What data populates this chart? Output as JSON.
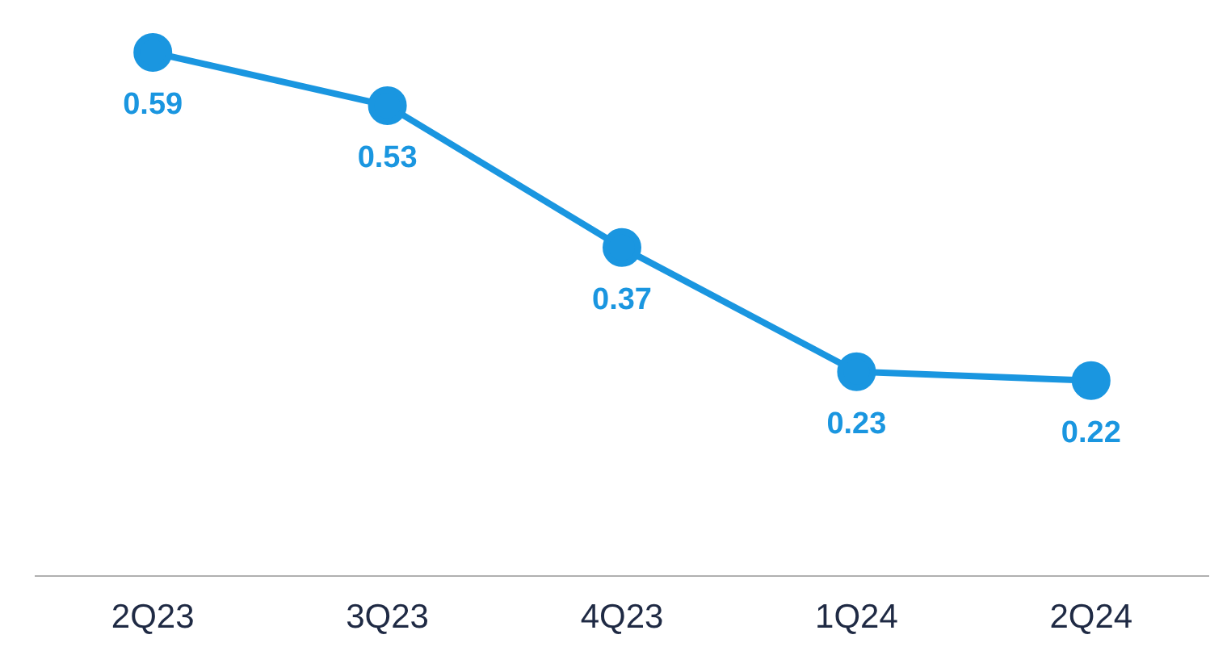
{
  "chart_data": {
    "type": "line",
    "categories": [
      "2Q23",
      "3Q23",
      "4Q23",
      "1Q24",
      "2Q24"
    ],
    "series": [
      {
        "color": "#1a96e0",
        "values": [
          0.59,
          0.53,
          0.37,
          0.23,
          0.22
        ]
      }
    ],
    "data_labels": true,
    "marker": "circle",
    "line_style": "solid",
    "grid": false,
    "legend": false,
    "tick_labels": "x"
  }
}
